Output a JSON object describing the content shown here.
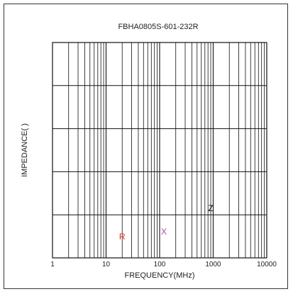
{
  "chart_data": {
    "type": "line",
    "title": "FBHA0805S-601-232R",
    "xlabel": "FREQUENCY(MHz)",
    "ylabel": "IMPEDANCE( )",
    "x_scale": "log",
    "xlim": [
      1,
      10000
    ],
    "x_ticks": [
      1,
      10,
      100,
      1000,
      10000
    ],
    "x_tick_labels": [
      "1",
      "10",
      "100",
      "1000",
      "10000"
    ],
    "y_divisions": 5,
    "grid": true,
    "series": [],
    "annotations": [
      {
        "text": "R",
        "color": "#e8322a",
        "x": 20
      },
      {
        "text": "X",
        "color": "#b548b5",
        "x": 120
      },
      {
        "text": "Z",
        "color": "#111111",
        "x": 900
      }
    ]
  }
}
